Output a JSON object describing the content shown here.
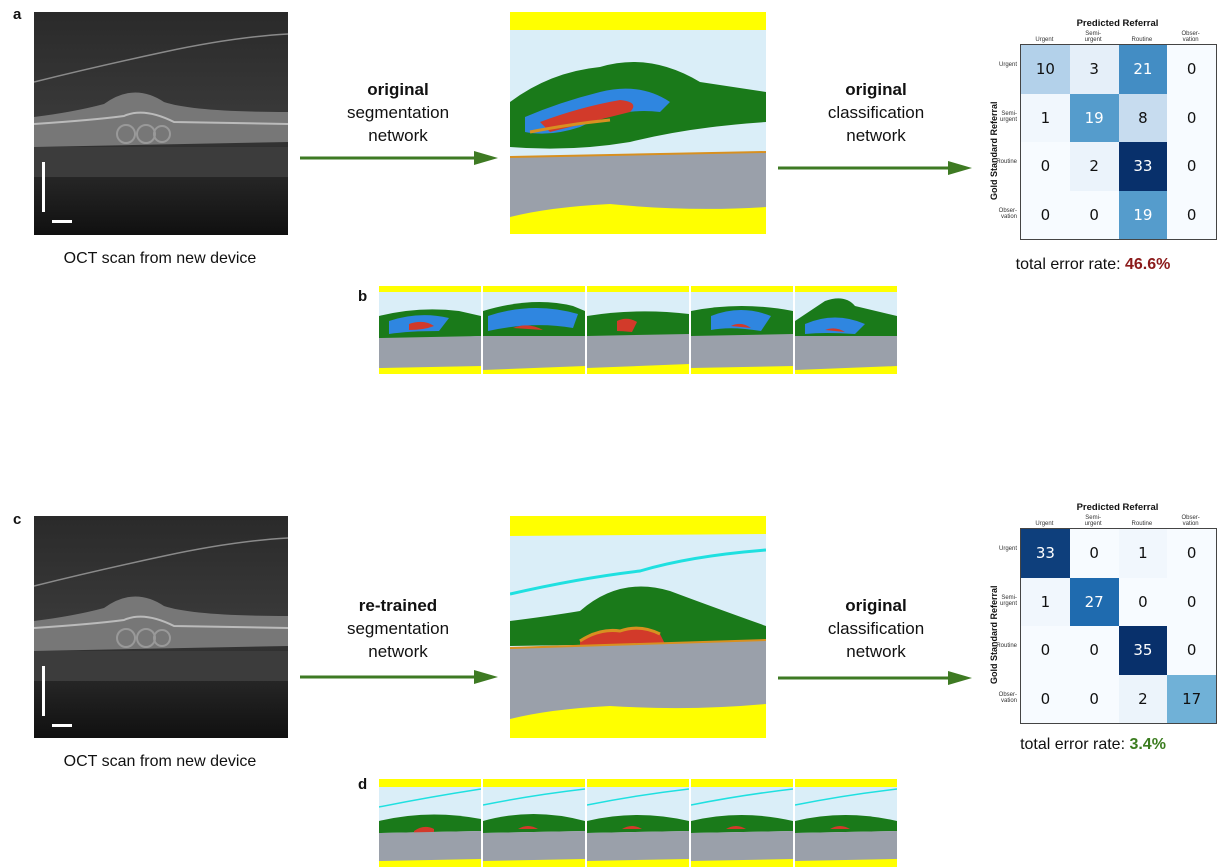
{
  "panel_letters": {
    "a": "a",
    "b": "b",
    "c": "c",
    "d": "d"
  },
  "top": {
    "oct_caption": "OCT scan from new device",
    "seg_label": {
      "bold": "original",
      "line2": "segmentation",
      "line3": "network"
    },
    "cls_label": {
      "bold": "original",
      "line2": "classification",
      "line3": "network"
    },
    "error": {
      "prefix": "total error rate: ",
      "value": "46.6%"
    },
    "matrix": {
      "title": "Predicted Referral",
      "ylabel": "Gold Standard Referral",
      "col_labels": [
        "Urgent",
        "Semi-\nurgent",
        "Routine",
        "Obser-\nvation"
      ],
      "row_labels": [
        "Urgent",
        "Semi-\nurgent",
        "Routine",
        "Obser-\nvation"
      ],
      "values": [
        [
          10,
          3,
          21,
          0
        ],
        [
          1,
          19,
          8,
          0
        ],
        [
          0,
          2,
          33,
          0
        ],
        [
          0,
          0,
          19,
          0
        ]
      ]
    }
  },
  "bottom": {
    "oct_caption": "OCT scan from new device",
    "seg_label": {
      "bold": "re-trained",
      "line2": "segmentation",
      "line3": "network"
    },
    "cls_label": {
      "bold": "original",
      "line2": "classification",
      "line3": "network"
    },
    "error": {
      "prefix": "total error rate: ",
      "value": "3.4%"
    },
    "matrix": {
      "title": "Predicted Referral",
      "ylabel": "Gold Standard Referral",
      "col_labels": [
        "Urgent",
        "Semi-\nurgent",
        "Routine",
        "Obser-\nvation"
      ],
      "row_labels": [
        "Urgent",
        "Semi-\nurgent",
        "Routine",
        "Obser-\nvation"
      ],
      "values": [
        [
          33,
          0,
          1,
          0
        ],
        [
          1,
          27,
          0,
          0
        ],
        [
          0,
          0,
          35,
          0
        ],
        [
          0,
          0,
          2,
          17
        ]
      ]
    }
  },
  "colors": {
    "arrow": "#3e7a23",
    "seg_yellow": "#ffff00",
    "seg_lightblue": "#daeef8",
    "seg_green": "#1a7a1a",
    "seg_blue": "#2f86e0",
    "seg_red": "#d23a2a",
    "seg_orange": "#d89020",
    "seg_gray": "#9aa0aa",
    "seg_cyan": "#1fe0e0",
    "cm_max": "#08306b",
    "cm_min": "#f7fbff"
  }
}
